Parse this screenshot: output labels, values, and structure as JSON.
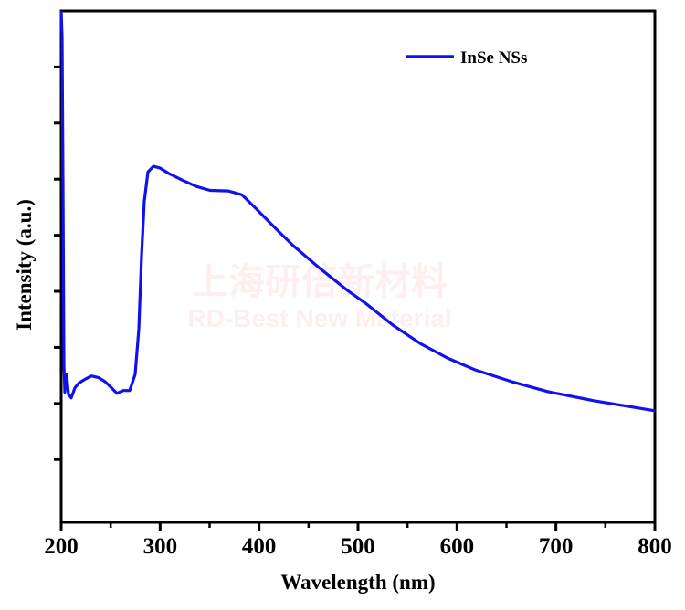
{
  "chart_data": {
    "type": "line",
    "title": "",
    "xlabel": "Wavelength (nm)",
    "ylabel": "Intensity (a.u.)",
    "xlim": [
      200,
      800
    ],
    "ylim": [
      -0.12,
      9
    ],
    "xticks": [
      200,
      300,
      400,
      500,
      600,
      700,
      800
    ],
    "xtick_labels": [
      "200",
      "300",
      "400",
      "500",
      "600",
      "700",
      "800"
    ],
    "xminor": [
      250,
      350,
      450,
      550,
      650,
      750
    ],
    "yticks": [
      1,
      2,
      3,
      4,
      5,
      6,
      7,
      8
    ],
    "ytick_labels_shown": false,
    "grid": false,
    "legend": {
      "position": "top-right",
      "entries": [
        "InSe NSs"
      ]
    },
    "series": [
      {
        "name": "InSe NSs",
        "color": "#1010f0",
        "x": [
          200,
          200.9,
          201.8,
          202.8,
          203.7,
          205.5,
          207.4,
          210.2,
          213.9,
          217.6,
          223.1,
          230.5,
          237.8,
          244.3,
          250.8,
          256.3,
          262.8,
          269.2,
          274.8,
          278.5,
          281.2,
          284,
          287.7,
          293.2,
          299.7,
          308.9,
          322.8,
          336.6,
          350.5,
          369,
          382.8,
          396.6,
          415.1,
          433.6,
          461.3,
          489,
          507.4,
          535.1,
          562.8,
          590.5,
          618.2,
          655.1,
          692,
          738.2,
          800
        ],
        "y": [
          9.0,
          8.54,
          5.93,
          2.68,
          2.2,
          2.52,
          2.16,
          2.1,
          2.28,
          2.36,
          2.42,
          2.49,
          2.46,
          2.39,
          2.28,
          2.18,
          2.23,
          2.23,
          2.52,
          3.33,
          4.63,
          5.61,
          6.13,
          6.23,
          6.2,
          6.1,
          5.98,
          5.87,
          5.8,
          5.79,
          5.72,
          5.48,
          5.15,
          4.83,
          4.41,
          4.02,
          3.79,
          3.4,
          3.07,
          2.81,
          2.6,
          2.39,
          2.21,
          2.05,
          1.87
        ]
      }
    ]
  },
  "watermark": {
    "line1": "上海研倍新材料",
    "line2": "RD-Best New Material"
  }
}
